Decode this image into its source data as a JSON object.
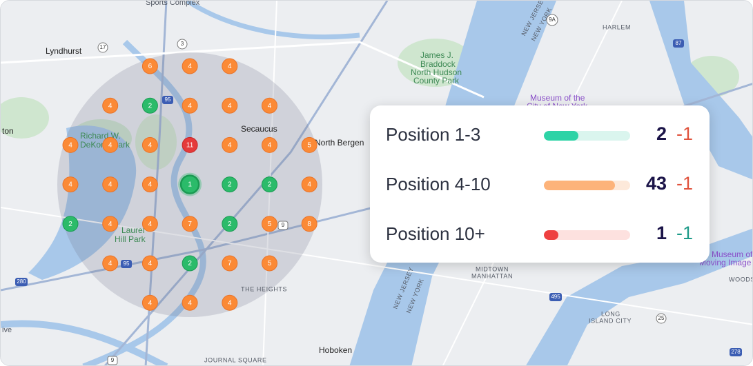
{
  "map": {
    "labels": [
      "Sports Complex",
      "Lyndhurst",
      "Richard W.",
      "DeKorte Park",
      "ton",
      "Laurel",
      "Hill Park",
      "Secaucus",
      "North Bergen",
      "James J.",
      "Braddock",
      "North Hudson",
      "County Park",
      "HARLEM",
      "Museum of the",
      "City of New York",
      "Museum of the",
      "Moving Image",
      "WOODSI",
      "MIDTOWN",
      "MANHATTAN",
      "THE HEIGHTS",
      "NEW JERSEY",
      "NEW YORK",
      "NEW JERSEY",
      "NEW YORK",
      "LONG",
      "ISLAND CITY",
      "Hoboken",
      "JOURNAL SQUARE",
      "ive"
    ],
    "shields": [
      "17",
      "3",
      "95",
      "9A",
      "87",
      "95",
      "280",
      "9",
      "9",
      "495",
      "25",
      "278"
    ]
  },
  "grid": [
    [
      null,
      null,
      6,
      4,
      4,
      null,
      null
    ],
    [
      null,
      4,
      2,
      4,
      4,
      4,
      null
    ],
    [
      4,
      4,
      4,
      11,
      4,
      4,
      5
    ],
    [
      4,
      4,
      4,
      1,
      2,
      2,
      4
    ],
    [
      2,
      4,
      4,
      7,
      2,
      5,
      8
    ],
    [
      null,
      4,
      4,
      2,
      7,
      5,
      null
    ],
    [
      null,
      null,
      4,
      4,
      4,
      null,
      null
    ]
  ],
  "summary": [
    {
      "label": "Position 1-3",
      "bar_fill": 40,
      "count": 2,
      "change": "-1",
      "color": "#2ed3a6",
      "track": "#daf5ee",
      "change_color": "#e0523c"
    },
    {
      "label": "Position 4-10",
      "bar_fill": 82,
      "count": 43,
      "change": "-1",
      "color": "#fdb37a",
      "track": "#fde9da",
      "change_color": "#e0523c"
    },
    {
      "label": "Position 10+",
      "bar_fill": 17,
      "count": 1,
      "change": "-1",
      "color": "#ee4040",
      "track": "#fde1df",
      "change_color": "#1d9a88"
    }
  ]
}
